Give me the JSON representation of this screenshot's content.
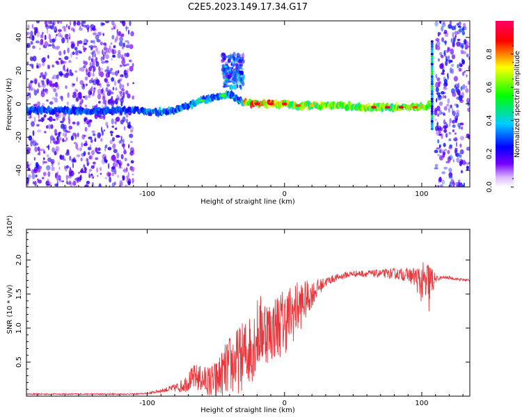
{
  "title": "C2E5.2023.149.17.34.G17",
  "chart_data": [
    {
      "type": "heatmap",
      "xlabel": "Height of straight line (km)",
      "ylabel": "Frequency (Hz)",
      "xlim": [
        -188,
        135
      ],
      "ylim": [
        -50,
        50
      ],
      "xticks": [
        -100,
        0,
        100
      ],
      "yticks": [
        -40,
        -20,
        0,
        20,
        40
      ],
      "grid": false,
      "colorbar": {
        "label": "Normalized spectral amplitude",
        "range": [
          0,
          1
        ],
        "ticks": [
          0.0,
          0.2,
          0.4,
          0.6,
          0.8
        ],
        "tick_labels": [
          "0.0",
          "0.2",
          "0.4",
          "0.6",
          "0.8"
        ],
        "colors": [
          "#ffffff",
          "#7700ff",
          "#0000ff",
          "#00ccff",
          "#00ff00",
          "#ffff00",
          "#ff0000",
          "#ff0066"
        ]
      },
      "ridge": {
        "x": [
          -188,
          -160,
          -130,
          -110,
          -95,
          -80,
          -70,
          -60,
          -50,
          -40,
          -35,
          -30,
          -20,
          -10,
          0,
          10,
          20,
          40,
          60,
          80,
          100,
          107
        ],
        "y": [
          -4,
          -4,
          -4,
          -4,
          -5,
          -4,
          -1,
          2,
          4,
          6,
          3,
          1,
          0,
          0,
          0,
          -1,
          -1,
          -1,
          -2,
          -2,
          -2,
          0
        ]
      },
      "bands": [
        {
          "x_start": -188,
          "x_end": -110,
          "y_range": [
            -50,
            50
          ],
          "amplitude": 0.2
        },
        {
          "x_start": 110,
          "x_end": 135,
          "y_range": [
            -50,
            50
          ],
          "amplitude": 0.25
        },
        {
          "x_start": -45,
          "x_end": -30,
          "y_range": [
            10,
            30
          ],
          "amplitude": 0.35
        }
      ]
    },
    {
      "type": "line",
      "xlabel": "Height of straight line (km)",
      "ylabel": "SNR (10 * v/v)",
      "scale_label": "(x10⁴)",
      "xlim": [
        -188,
        135
      ],
      "ylim": [
        0,
        2.45
      ],
      "xticks": [
        -100,
        0,
        100
      ],
      "yticks": [
        0.5,
        1.0,
        1.5,
        2.0
      ],
      "ytick_labels": [
        "0.5",
        "1.0",
        "1.5",
        "2.0"
      ],
      "grid": false,
      "color": "#e8373c",
      "series": [
        {
          "x": [
            -188,
            -170,
            -150,
            -130,
            -110,
            -100,
            -95,
            -90,
            -85,
            -80,
            -75,
            -70,
            -65,
            -60,
            -55,
            -50,
            -45,
            -40,
            -35,
            -30,
            -25,
            -20,
            -15,
            -10,
            -5,
            0,
            5,
            10,
            15,
            20,
            25,
            30,
            35,
            40,
            45,
            50,
            60,
            70,
            80,
            90,
            95,
            100,
            105,
            108,
            110,
            115,
            120,
            125,
            130,
            135
          ],
          "y": [
            0.03,
            0.03,
            0.03,
            0.03,
            0.03,
            0.04,
            0.06,
            0.08,
            0.1,
            0.12,
            0.15,
            0.22,
            0.28,
            0.25,
            0.2,
            0.22,
            0.35,
            0.45,
            0.5,
            0.6,
            0.7,
            0.9,
            1.0,
            0.95,
            1.05,
            1.1,
            1.2,
            1.3,
            1.4,
            1.5,
            1.6,
            1.68,
            1.72,
            1.75,
            1.78,
            1.8,
            1.8,
            1.8,
            1.8,
            1.78,
            1.75,
            1.65,
            1.6,
            1.7,
            1.72,
            1.74,
            1.74,
            1.72,
            1.71,
            1.7
          ],
          "noise": [
            0.01,
            0.01,
            0.01,
            0.01,
            0.01,
            0.01,
            0.02,
            0.03,
            0.04,
            0.06,
            0.1,
            0.15,
            0.2,
            0.2,
            0.25,
            0.3,
            0.35,
            0.45,
            0.5,
            0.5,
            0.55,
            0.55,
            0.55,
            0.45,
            0.5,
            0.5,
            0.45,
            0.4,
            0.3,
            0.2,
            0.12,
            0.07,
            0.06,
            0.05,
            0.05,
            0.05,
            0.05,
            0.06,
            0.08,
            0.1,
            0.15,
            0.3,
            0.45,
            0.2,
            0.05,
            0.02,
            0.02,
            0.02,
            0.02,
            0.02
          ]
        }
      ]
    }
  ]
}
